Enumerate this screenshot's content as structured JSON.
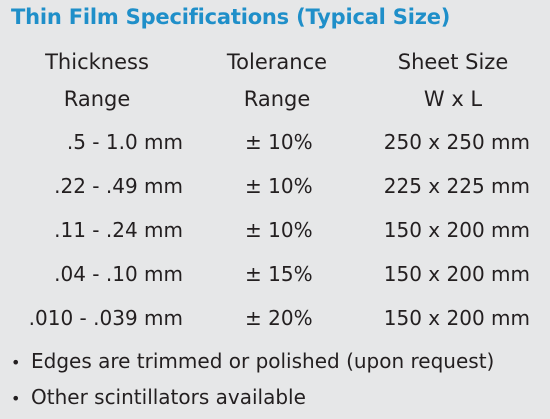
{
  "title": "Thin Film Specifications (Typical Size)",
  "headers": {
    "thickness": [
      "Thickness",
      "Range"
    ],
    "tolerance": [
      "Tolerance",
      "Range"
    ],
    "sheet": [
      "Sheet Size",
      "W x L"
    ]
  },
  "rows": [
    {
      "thickness": ".5 - 1.0 mm",
      "tolerance": "± 10%",
      "sheet": "250 x 250 mm"
    },
    {
      "thickness": ".22 - .49 mm",
      "tolerance": "± 10%",
      "sheet": "225 x 225 mm"
    },
    {
      "thickness": ".11 - .24 mm",
      "tolerance": "± 10%",
      "sheet": "150 x 200 mm"
    },
    {
      "thickness": ".04 - .10 mm",
      "tolerance": "± 15%",
      "sheet": "150 x 200 mm"
    },
    {
      "thickness": ".010 - .039 mm",
      "tolerance": "± 20%",
      "sheet": "150 x 200 mm"
    }
  ],
  "notes": {
    "bullet": "•",
    "items": [
      "Edges are trimmed or polished (upon request)",
      "Other scintillators available"
    ]
  },
  "colors": {
    "background": "#e6e7e8",
    "title": "#1f8fc9",
    "text": "#231f20"
  }
}
